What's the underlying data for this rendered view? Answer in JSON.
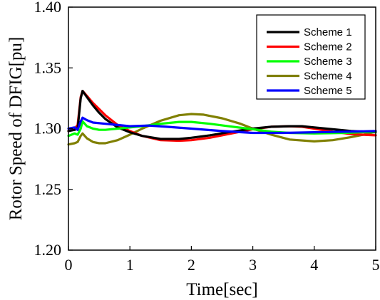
{
  "chart_data": {
    "type": "line",
    "xlabel": "Time[sec]",
    "ylabel": "Rotor Speed of DFIG[pu]",
    "xlim": [
      0,
      5
    ],
    "ylim": [
      1.2,
      1.4
    ],
    "x_ticks": [
      0,
      1,
      2,
      3,
      4,
      5
    ],
    "x_tick_labels": [
      "0",
      "1",
      "2",
      "3",
      "4",
      "5"
    ],
    "y_ticks": [
      1.2,
      1.25,
      1.3,
      1.35,
      1.4
    ],
    "y_tick_labels": [
      "1.20",
      "1.25",
      "1.30",
      "1.35",
      "1.40"
    ],
    "grid": false,
    "legend_position": "top-right",
    "series": [
      {
        "name": "Scheme 1",
        "color": "#000000",
        "x": [
          0,
          0.1,
          0.15,
          0.2,
          0.23,
          0.3,
          0.4,
          0.5,
          0.6,
          0.8,
          1.0,
          1.2,
          1.5,
          1.8,
          2.0,
          2.3,
          2.6,
          3.0,
          3.3,
          3.6,
          3.8,
          4.0,
          4.3,
          4.6,
          5.0
        ],
        "y": [
          1.298,
          1.299,
          1.3,
          1.325,
          1.331,
          1.326,
          1.319,
          1.313,
          1.308,
          1.301,
          1.297,
          1.294,
          1.2915,
          1.2915,
          1.2925,
          1.2945,
          1.297,
          1.3,
          1.3015,
          1.302,
          1.302,
          1.301,
          1.2995,
          1.298,
          1.297
        ]
      },
      {
        "name": "Scheme 2",
        "color": "#ff0000",
        "x": [
          0,
          0.1,
          0.15,
          0.2,
          0.23,
          0.3,
          0.4,
          0.5,
          0.6,
          0.8,
          1.0,
          1.2,
          1.5,
          1.8,
          2.0,
          2.3,
          2.6,
          3.0,
          3.3,
          3.6,
          3.8,
          4.0,
          4.3,
          4.6,
          5.0
        ],
        "y": [
          1.298,
          1.3,
          1.303,
          1.326,
          1.331,
          1.327,
          1.321,
          1.316,
          1.311,
          1.303,
          1.298,
          1.294,
          1.2905,
          1.29,
          1.2905,
          1.2925,
          1.2955,
          1.2995,
          1.3015,
          1.302,
          1.3015,
          1.3,
          1.2975,
          1.2955,
          1.2945
        ]
      },
      {
        "name": "Scheme 3",
        "color": "#00ff00",
        "x": [
          0,
          0.1,
          0.15,
          0.2,
          0.23,
          0.3,
          0.4,
          0.5,
          0.6,
          0.8,
          1.0,
          1.2,
          1.5,
          1.8,
          2.0,
          2.3,
          2.6,
          3.0,
          3.3,
          3.6,
          4.0,
          4.5,
          5.0
        ],
        "y": [
          1.294,
          1.296,
          1.295,
          1.3,
          1.306,
          1.302,
          1.3,
          1.299,
          1.299,
          1.3,
          1.301,
          1.302,
          1.304,
          1.3055,
          1.3055,
          1.304,
          1.302,
          1.2995,
          1.2975,
          1.2965,
          1.296,
          1.2965,
          1.2975
        ]
      },
      {
        "name": "Scheme 4",
        "color": "#808000",
        "x": [
          0,
          0.1,
          0.15,
          0.2,
          0.23,
          0.3,
          0.4,
          0.5,
          0.6,
          0.8,
          1.0,
          1.2,
          1.5,
          1.8,
          2.0,
          2.2,
          2.5,
          2.8,
          3.0,
          3.3,
          3.6,
          4.0,
          4.3,
          4.6,
          4.8,
          5.0
        ],
        "y": [
          1.287,
          1.288,
          1.289,
          1.294,
          1.296,
          1.292,
          1.289,
          1.288,
          1.288,
          1.2905,
          1.295,
          1.3,
          1.3065,
          1.311,
          1.312,
          1.3115,
          1.3085,
          1.304,
          1.3,
          1.295,
          1.291,
          1.2895,
          1.2905,
          1.293,
          1.295,
          1.2975
        ]
      },
      {
        "name": "Scheme 5",
        "color": "#0000ff",
        "x": [
          0,
          0.1,
          0.15,
          0.2,
          0.23,
          0.3,
          0.4,
          0.6,
          0.8,
          1.0,
          1.3,
          1.6,
          2.0,
          2.5,
          3.0,
          3.5,
          4.0,
          4.5,
          5.0
        ],
        "y": [
          1.3,
          1.301,
          1.299,
          1.306,
          1.309,
          1.307,
          1.305,
          1.304,
          1.303,
          1.302,
          1.3025,
          1.3015,
          1.3,
          1.298,
          1.2965,
          1.2965,
          1.297,
          1.2975,
          1.298
        ]
      }
    ]
  }
}
